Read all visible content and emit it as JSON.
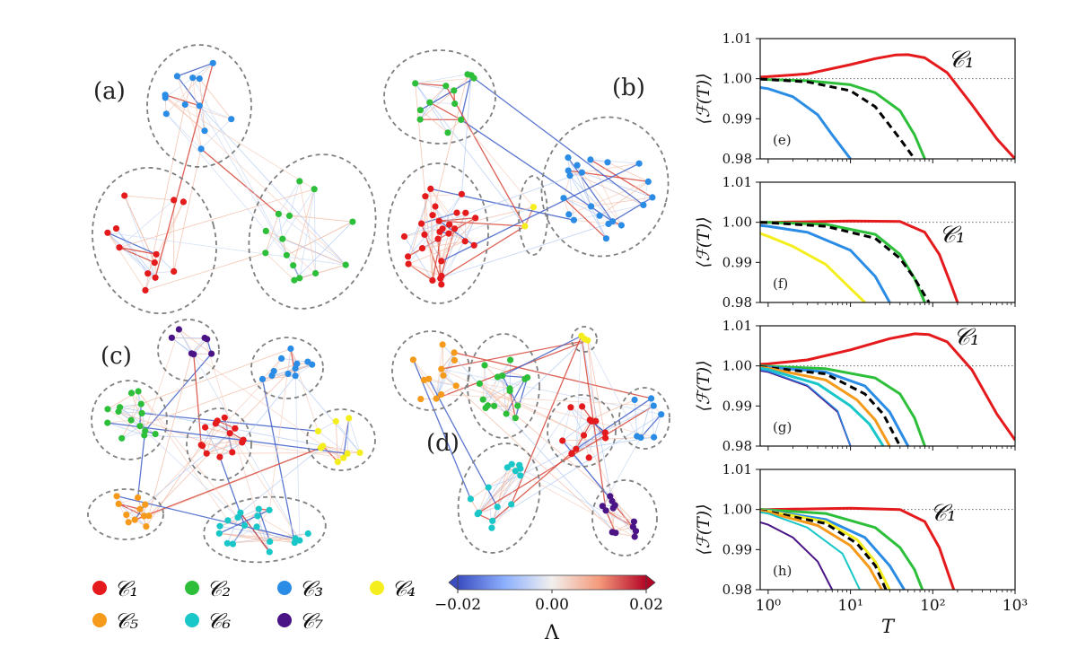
{
  "panel_labels": [
    "(a)",
    "(b)",
    "(c)",
    "(d)"
  ],
  "legend": {
    "items": [
      {
        "label": "𝒞₁",
        "color": "#e41a1c"
      },
      {
        "label": "𝒞₂",
        "color": "#2dbf3a"
      },
      {
        "label": "𝒞₃",
        "color": "#2b8ce6"
      },
      {
        "label": "𝒞₄",
        "color": "#f5ee1e"
      },
      {
        "label": "𝒞₅",
        "color": "#f59a1a"
      },
      {
        "label": "𝒞₆",
        "color": "#19c7c9"
      },
      {
        "label": "𝒞₇",
        "color": "#4a1486"
      }
    ]
  },
  "colorbar": {
    "label": "Λ",
    "ticks": [
      "−0.02",
      "0.00",
      "0.02"
    ],
    "min": -0.02,
    "max": 0.02
  },
  "chart_data": [
    {
      "type": "line",
      "panel": "(e)",
      "ylabel": "⟨ℱ(T)⟩",
      "xlabel": "",
      "xscale": "log",
      "xlim": [
        0.8,
        1000
      ],
      "ylim": [
        0.98,
        1.01
      ],
      "yticks": [
        "0.98",
        "0.99",
        "1.00",
        "1.01"
      ],
      "reference_line": 1.0,
      "annotation": "𝒞₁",
      "series": [
        {
          "color": "#e41a1c",
          "style": "solid",
          "width": 3,
          "x": [
            0.8,
            1,
            3,
            10,
            20,
            35,
            50,
            80,
            150,
            300,
            600,
            1000
          ],
          "y": [
            1.0004,
            1.0005,
            1.0012,
            1.0035,
            1.005,
            1.0059,
            1.006,
            1.0052,
            1.0015,
            0.9935,
            0.985,
            0.98
          ]
        },
        {
          "color": "#2dbf3a",
          "style": "solid",
          "width": 3,
          "x": [
            0.8,
            1,
            3,
            10,
            20,
            40,
            60,
            80
          ],
          "y": [
            0.9999,
            0.9998,
            0.9995,
            0.9985,
            0.9965,
            0.992,
            0.986,
            0.98
          ]
        },
        {
          "color": "#000000",
          "style": "dashed",
          "width": 3,
          "x": [
            0.8,
            1,
            3,
            10,
            20,
            40,
            60
          ],
          "y": [
            0.9999,
            0.9998,
            0.9992,
            0.997,
            0.993,
            0.985,
            0.98
          ]
        },
        {
          "color": "#2b8ce6",
          "style": "solid",
          "width": 3,
          "x": [
            0.8,
            1,
            2,
            4,
            6,
            10
          ],
          "y": [
            0.9978,
            0.9975,
            0.9955,
            0.991,
            0.986,
            0.98
          ]
        }
      ]
    },
    {
      "type": "line",
      "panel": "(f)",
      "ylabel": "⟨ℱ(T)⟩",
      "xlabel": "",
      "xscale": "log",
      "xlim": [
        0.8,
        1000
      ],
      "ylim": [
        0.98,
        1.01
      ],
      "yticks": [
        "0.98",
        "0.99",
        "1.00",
        "1.01"
      ],
      "reference_line": 1.0,
      "annotation": "𝒞₁",
      "series": [
        {
          "color": "#e41a1c",
          "style": "solid",
          "width": 3,
          "x": [
            0.8,
            1,
            10,
            40,
            80,
            120,
            170,
            200
          ],
          "y": [
            1.0,
            1.0,
            1.0003,
            1.0002,
            0.9975,
            0.992,
            0.984,
            0.98
          ]
        },
        {
          "color": "#2dbf3a",
          "style": "solid",
          "width": 3,
          "x": [
            0.8,
            1,
            5,
            20,
            40,
            60,
            80
          ],
          "y": [
            1.0,
            1.0,
            0.9995,
            0.997,
            0.992,
            0.986,
            0.98
          ]
        },
        {
          "color": "#000000",
          "style": "dashed",
          "width": 3,
          "x": [
            0.8,
            1,
            5,
            20,
            40,
            60,
            90
          ],
          "y": [
            1.0,
            0.9999,
            0.999,
            0.996,
            0.991,
            0.986,
            0.98
          ]
        },
        {
          "color": "#2b8ce6",
          "style": "solid",
          "width": 3,
          "x": [
            0.8,
            1,
            3,
            10,
            20,
            30
          ],
          "y": [
            0.9992,
            0.999,
            0.9975,
            0.993,
            0.9865,
            0.98
          ]
        },
        {
          "color": "#f5ee1e",
          "style": "solid",
          "width": 3,
          "x": [
            0.8,
            1,
            2,
            5,
            10,
            15
          ],
          "y": [
            0.9972,
            0.9965,
            0.994,
            0.9895,
            0.9835,
            0.98
          ]
        }
      ]
    },
    {
      "type": "line",
      "panel": "(g)",
      "ylabel": "⟨ℱ(T)⟩",
      "xlabel": "",
      "xscale": "log",
      "xlim": [
        0.8,
        1000
      ],
      "ylim": [
        0.98,
        1.01
      ],
      "yticks": [
        "0.98",
        "0.99",
        "1.00",
        "1.01"
      ],
      "reference_line": 1.0,
      "annotation": "𝒞₁",
      "series": [
        {
          "color": "#e41a1c",
          "style": "solid",
          "width": 3,
          "x": [
            0.8,
            1,
            3,
            10,
            30,
            60,
            90,
            150,
            300,
            600,
            1000
          ],
          "y": [
            1.0004,
            1.0005,
            1.0015,
            1.004,
            1.0068,
            1.008,
            1.0078,
            1.006,
            0.999,
            0.988,
            0.9815
          ]
        },
        {
          "color": "#2dbf3a",
          "style": "solid",
          "width": 3,
          "x": [
            0.8,
            1,
            5,
            20,
            40,
            60,
            80
          ],
          "y": [
            1.0,
            0.9999,
            0.9993,
            0.997,
            0.993,
            0.987,
            0.98
          ]
        },
        {
          "color": "#2b8ce6",
          "style": "solid",
          "width": 3,
          "x": [
            0.8,
            1,
            5,
            15,
            30,
            50
          ],
          "y": [
            0.9998,
            0.9997,
            0.9985,
            0.995,
            0.9885,
            0.98
          ]
        },
        {
          "color": "#000000",
          "style": "dashed",
          "width": 3,
          "x": [
            0.8,
            1,
            5,
            15,
            25,
            40
          ],
          "y": [
            0.9998,
            0.9996,
            0.998,
            0.993,
            0.988,
            0.98
          ]
        },
        {
          "color": "#f59a1a",
          "style": "solid",
          "width": 3,
          "x": [
            0.8,
            1,
            5,
            12,
            20,
            30
          ],
          "y": [
            0.9996,
            0.9994,
            0.9965,
            0.9915,
            0.9865,
            0.98
          ]
        },
        {
          "color": "#19c7c9",
          "style": "solid",
          "width": 3,
          "x": [
            0.8,
            1,
            4,
            10,
            17,
            25
          ],
          "y": [
            0.9994,
            0.9991,
            0.9955,
            0.99,
            0.9855,
            0.98
          ]
        },
        {
          "color": "#4a1486",
          "style": "solid",
          "width": 2,
          "x": [
            0.8,
            1,
            3,
            7,
            10
          ],
          "y": [
            0.9988,
            0.9985,
            0.995,
            0.9885,
            0.98
          ]
        },
        {
          "color": "#2b8ce6",
          "style": "solid",
          "width": 1.5,
          "x": [
            0.8,
            1,
            3,
            7,
            10
          ],
          "y": [
            0.999,
            0.9987,
            0.9952,
            0.9888,
            0.98
          ]
        }
      ]
    },
    {
      "type": "line",
      "panel": "(h)",
      "ylabel": "⟨ℱ(T)⟩",
      "xlabel": "T",
      "xscale": "log",
      "xlim": [
        0.8,
        1000
      ],
      "ylim": [
        0.98,
        1.01
      ],
      "xticks": [
        "10⁰",
        "10¹",
        "10²",
        "10³"
      ],
      "yticks": [
        "0.98",
        "0.99",
        "1.00",
        "1.01"
      ],
      "reference_line": 1.0,
      "annotation": "𝒞₁",
      "series": [
        {
          "color": "#e41a1c",
          "style": "solid",
          "width": 3,
          "x": [
            0.8,
            1,
            10,
            40,
            80,
            120,
            180
          ],
          "y": [
            1.0,
            1.0,
            1.0003,
            1.0,
            0.997,
            0.9905,
            0.98
          ]
        },
        {
          "color": "#2dbf3a",
          "style": "solid",
          "width": 3,
          "x": [
            0.8,
            1,
            5,
            20,
            40,
            60,
            75
          ],
          "y": [
            1.0,
            0.9999,
            0.999,
            0.9955,
            0.9905,
            0.985,
            0.98
          ]
        },
        {
          "color": "#2b8ce6",
          "style": "solid",
          "width": 3,
          "x": [
            0.8,
            1,
            5,
            15,
            30,
            45
          ],
          "y": [
            0.9998,
            0.9997,
            0.9975,
            0.993,
            0.986,
            0.98
          ]
        },
        {
          "color": "#f5ee1e",
          "style": "solid",
          "width": 3,
          "x": [
            0.8,
            1,
            5,
            12,
            20,
            30
          ],
          "y": [
            0.9998,
            0.9996,
            0.997,
            0.9925,
            0.987,
            0.98
          ]
        },
        {
          "color": "#000000",
          "style": "dashed",
          "width": 3,
          "x": [
            0.8,
            1,
            5,
            12,
            20,
            27
          ],
          "y": [
            0.9997,
            0.9995,
            0.9965,
            0.9915,
            0.986,
            0.98
          ]
        },
        {
          "color": "#f59a1a",
          "style": "solid",
          "width": 3,
          "x": [
            0.8,
            1,
            4,
            10,
            17,
            24
          ],
          "y": [
            0.9996,
            0.9993,
            0.996,
            0.991,
            0.9855,
            0.98
          ]
        },
        {
          "color": "#19c7c9",
          "style": "solid",
          "width": 2,
          "x": [
            0.8,
            1,
            3,
            8,
            13
          ],
          "y": [
            0.9993,
            0.999,
            0.9955,
            0.989,
            0.98
          ]
        },
        {
          "color": "#4a1486",
          "style": "solid",
          "width": 2,
          "x": [
            0.8,
            1,
            2,
            4,
            6
          ],
          "y": [
            0.9968,
            0.9962,
            0.993,
            0.987,
            0.98
          ]
        }
      ]
    }
  ]
}
